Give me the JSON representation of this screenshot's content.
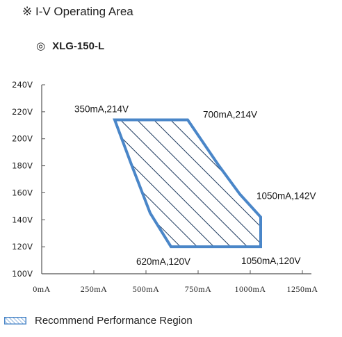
{
  "header": {
    "title": "※ I-V Operating Area",
    "model_symbol": "◎",
    "model": "XLG-150-L"
  },
  "legend": {
    "label": "Recommend Performance Region"
  },
  "colors": {
    "region_stroke": "#4a86c8",
    "region_hatch": "#1e3a5f",
    "axis": "#555555"
  },
  "chart_data": {
    "type": "area",
    "xlabel": "",
    "ylabel": "",
    "xlim": [
      0,
      1250
    ],
    "ylim": [
      100,
      240
    ],
    "x_ticks": [
      0,
      250,
      500,
      750,
      1000,
      1250
    ],
    "x_tick_labels": [
      "0mA",
      "250mA",
      "500mA",
      "750mA",
      "1000mA",
      "1250mA"
    ],
    "y_ticks": [
      100,
      120,
      140,
      160,
      180,
      200,
      220,
      240
    ],
    "y_tick_labels": [
      "100V",
      "120V",
      "140V",
      "160V",
      "180V",
      "200V",
      "220V",
      "240V"
    ],
    "grid": false,
    "region": {
      "name": "Recommend Performance Region",
      "polygon": [
        {
          "x": 350,
          "y": 214
        },
        {
          "x": 700,
          "y": 214
        },
        {
          "x": 850,
          "y": 180
        },
        {
          "x": 950,
          "y": 159
        },
        {
          "x": 1050,
          "y": 142
        },
        {
          "x": 1050,
          "y": 120
        },
        {
          "x": 620,
          "y": 120
        },
        {
          "x": 520,
          "y": 145
        },
        {
          "x": 430,
          "y": 181
        }
      ]
    },
    "labeled_points": [
      {
        "x": 350,
        "y": 214,
        "label": "350mA,214V"
      },
      {
        "x": 700,
        "y": 214,
        "label": "700mA,214V"
      },
      {
        "x": 1050,
        "y": 142,
        "label": "1050mA,142V"
      },
      {
        "x": 620,
        "y": 120,
        "label": "620mA,120V"
      },
      {
        "x": 1050,
        "y": 120,
        "label": "1050mA,120V"
      }
    ]
  }
}
